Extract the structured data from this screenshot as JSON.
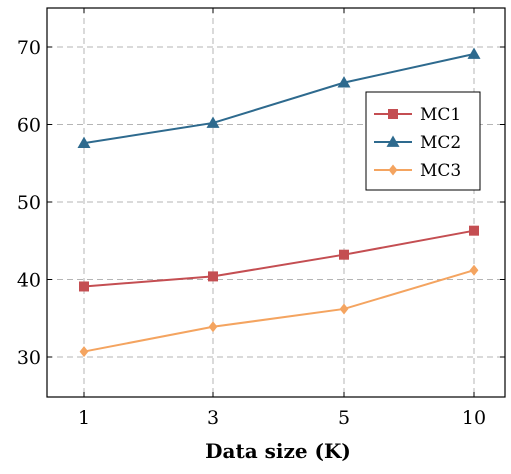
{
  "chart_data": {
    "type": "line",
    "categories": [
      "1",
      "3",
      "5",
      "10"
    ],
    "xlabel": "Data size (K)",
    "ylabel": "",
    "ylim": [
      25,
      75
    ],
    "yticks": [
      30,
      40,
      50,
      60,
      70
    ],
    "grid": true,
    "legend_position": "right",
    "series": [
      {
        "name": "MC1",
        "values": [
          39.1,
          40.4,
          43.2,
          46.3
        ],
        "color": "#c44e52",
        "marker": "square"
      },
      {
        "name": "MC2",
        "values": [
          57.6,
          60.2,
          65.4,
          69.1
        ],
        "color": "#2e6a8e",
        "marker": "triangle"
      },
      {
        "name": "MC3",
        "values": [
          30.7,
          33.9,
          36.2,
          41.2
        ],
        "color": "#f4a460",
        "marker": "diamond"
      }
    ]
  }
}
